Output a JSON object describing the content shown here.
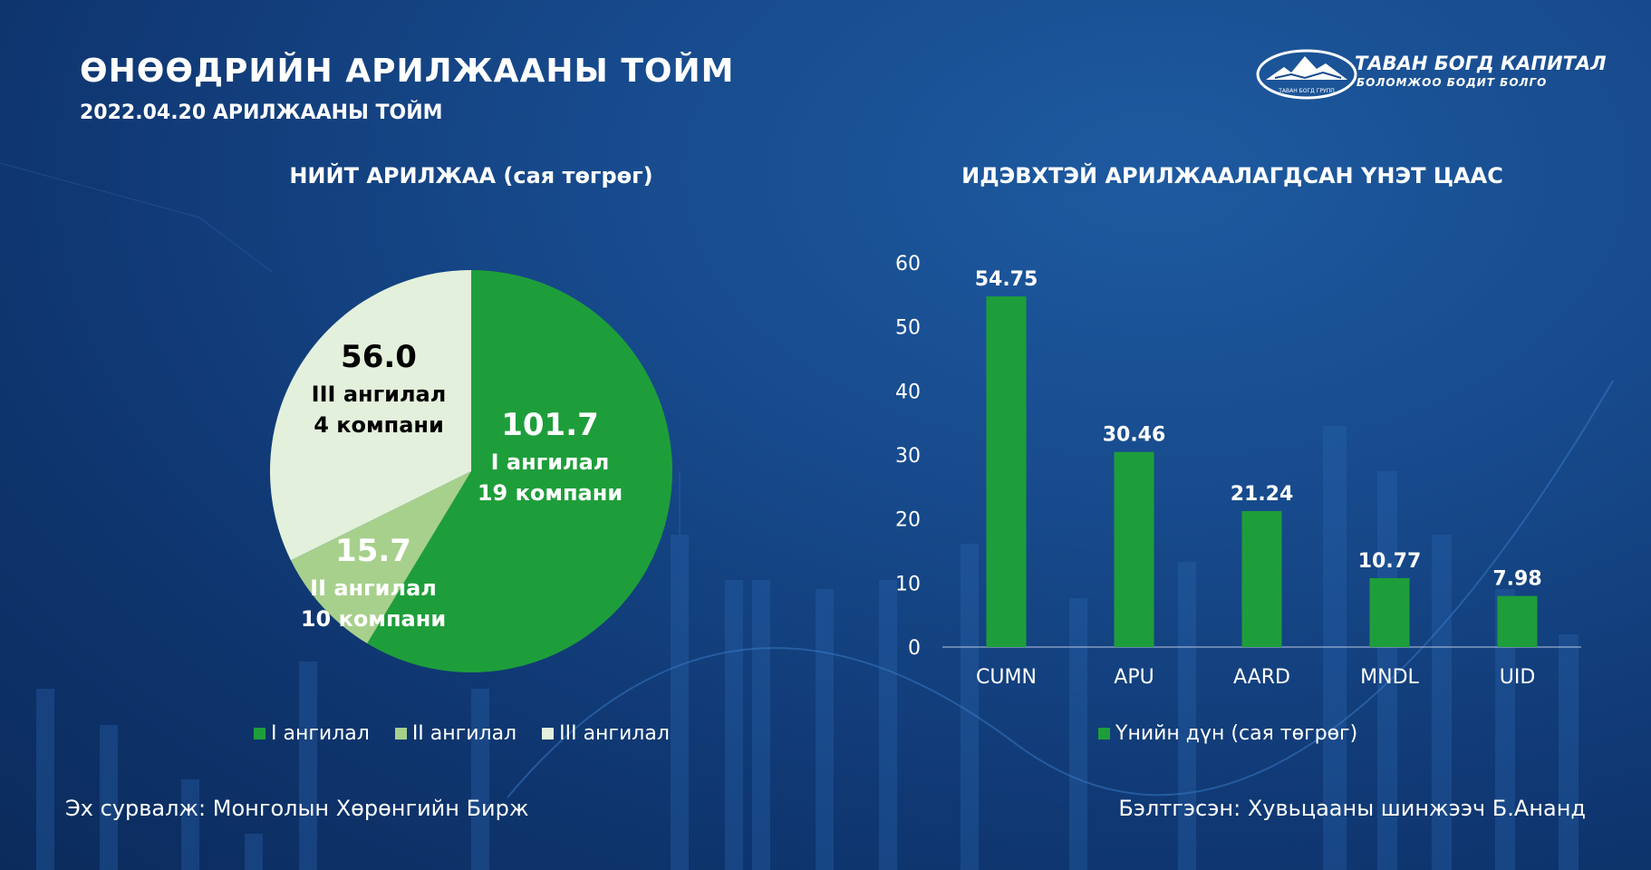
{
  "header": {
    "title": "ӨНӨӨДРИЙН АРИЛЖААНЫ ТОЙМ",
    "subtitle": "2022.04.20 АРИЛЖААНЫ ТОЙМ"
  },
  "logo": {
    "name": "ТАВАН БОГД КАПИТАЛ",
    "tagline": "БОЛОМЖОО БОДИТ БОЛГО",
    "seal_text": "ТАВАН БОГД ГРУПП"
  },
  "colors": {
    "green": "#1e9e3a",
    "light_green": "#a7d08c",
    "pale": "#e3f0db",
    "background": "#174a8c"
  },
  "chart_data": [
    {
      "type": "pie",
      "title": "НИЙТ АРИЛЖАА (сая төгрөг)",
      "slices": [
        {
          "name": "I ангилал",
          "value": 101.7,
          "label_value": "101.7",
          "label_line1": "I ангилал",
          "label_line2": "19 компани",
          "color": "#1e9e3a",
          "label_color": "#ffffff"
        },
        {
          "name": "II ангилал",
          "value": 15.7,
          "label_value": "15.7",
          "label_line1": "II ангилал",
          "label_line2": "10 компани",
          "color": "#a7d08c",
          "label_color": "#ffffff"
        },
        {
          "name": "III ангилал",
          "value": 56.0,
          "label_value": "56.0",
          "label_line1": "III ангилал",
          "label_line2": "4 компани",
          "color": "#e3f0db",
          "label_color": "#000000"
        }
      ],
      "legend": [
        "I ангилал",
        "II ангилал",
        "III ангилал"
      ],
      "legend_position": "bottom"
    },
    {
      "type": "bar",
      "title": "ИДЭВХТЭЙ АРИЛЖААЛАГДСАН ҮНЭТ ЦААС",
      "categories": [
        "CUMN",
        "APU",
        "AARD",
        "MNDL",
        "UID"
      ],
      "series": [
        {
          "name": "Үнийн дүн (сая төгрөг)",
          "values": [
            54.75,
            30.46,
            21.24,
            10.77,
            7.98
          ],
          "labels": [
            "54.75",
            "30.46",
            "21.24",
            "10.77",
            "7.98"
          ],
          "color": "#1e9e3a"
        }
      ],
      "yticks": [
        "0",
        "10",
        "20",
        "30",
        "40",
        "50",
        "60"
      ],
      "ylim": [
        0,
        60
      ],
      "grid": false,
      "legend_position": "bottom"
    }
  ],
  "footer": {
    "source": "Эх сурвалж: Монголын Хөрөнгийн Бирж",
    "prepared_by": "Бэлтгэсэн: Хувьцааны шинжээч Б.Ананд"
  }
}
